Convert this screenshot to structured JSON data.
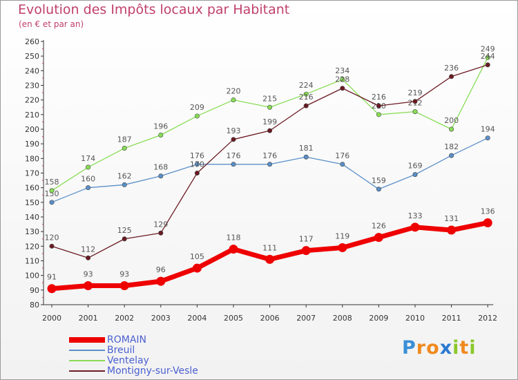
{
  "chart_data": {
    "type": "line",
    "title": "Evolution des Impôts locaux par Habitant",
    "subtitle": "(en € et par an)",
    "xlabel": "",
    "ylabel": "",
    "categories": [
      "2000",
      "2001",
      "2002",
      "2003",
      "2004",
      "2005",
      "2006",
      "2007",
      "2008",
      "2009",
      "2010",
      "2011",
      "2012"
    ],
    "ylim": [
      80,
      260
    ],
    "yticks": [
      80,
      90,
      100,
      110,
      120,
      130,
      140,
      150,
      160,
      170,
      180,
      190,
      200,
      210,
      220,
      230,
      240,
      250,
      260
    ],
    "grid": false,
    "legend_position": "bottom-left",
    "series": [
      {
        "name": "ROMAIN",
        "color": "#ee0000",
        "values": [
          91,
          93,
          93,
          96,
          105,
          118,
          111,
          117,
          119,
          126,
          133,
          131,
          136
        ]
      },
      {
        "name": "Breuil",
        "color": "#5a8fc8",
        "values": [
          150,
          160,
          162,
          168,
          176,
          176,
          176,
          181,
          176,
          159,
          169,
          182,
          194
        ]
      },
      {
        "name": "Ventelay",
        "color": "#88dd55",
        "values": [
          158,
          174,
          187,
          196,
          209,
          220,
          215,
          224,
          234,
          210,
          212,
          200,
          249
        ]
      },
      {
        "name": "Montigny-sur-Vesle",
        "color": "#6a1a22",
        "values": [
          120,
          112,
          125,
          129,
          170,
          193,
          199,
          216,
          228,
          216,
          219,
          236,
          244
        ]
      }
    ]
  },
  "logo": {
    "letters": [
      "P",
      "r",
      "o",
      "x",
      "i",
      "t",
      "i"
    ],
    "colors": [
      "#3a8fd8",
      "#f08a1e",
      "#f08a1e",
      "#2b7ad0",
      "#8bc82a",
      "#f08a1e",
      "#8bc82a"
    ]
  }
}
